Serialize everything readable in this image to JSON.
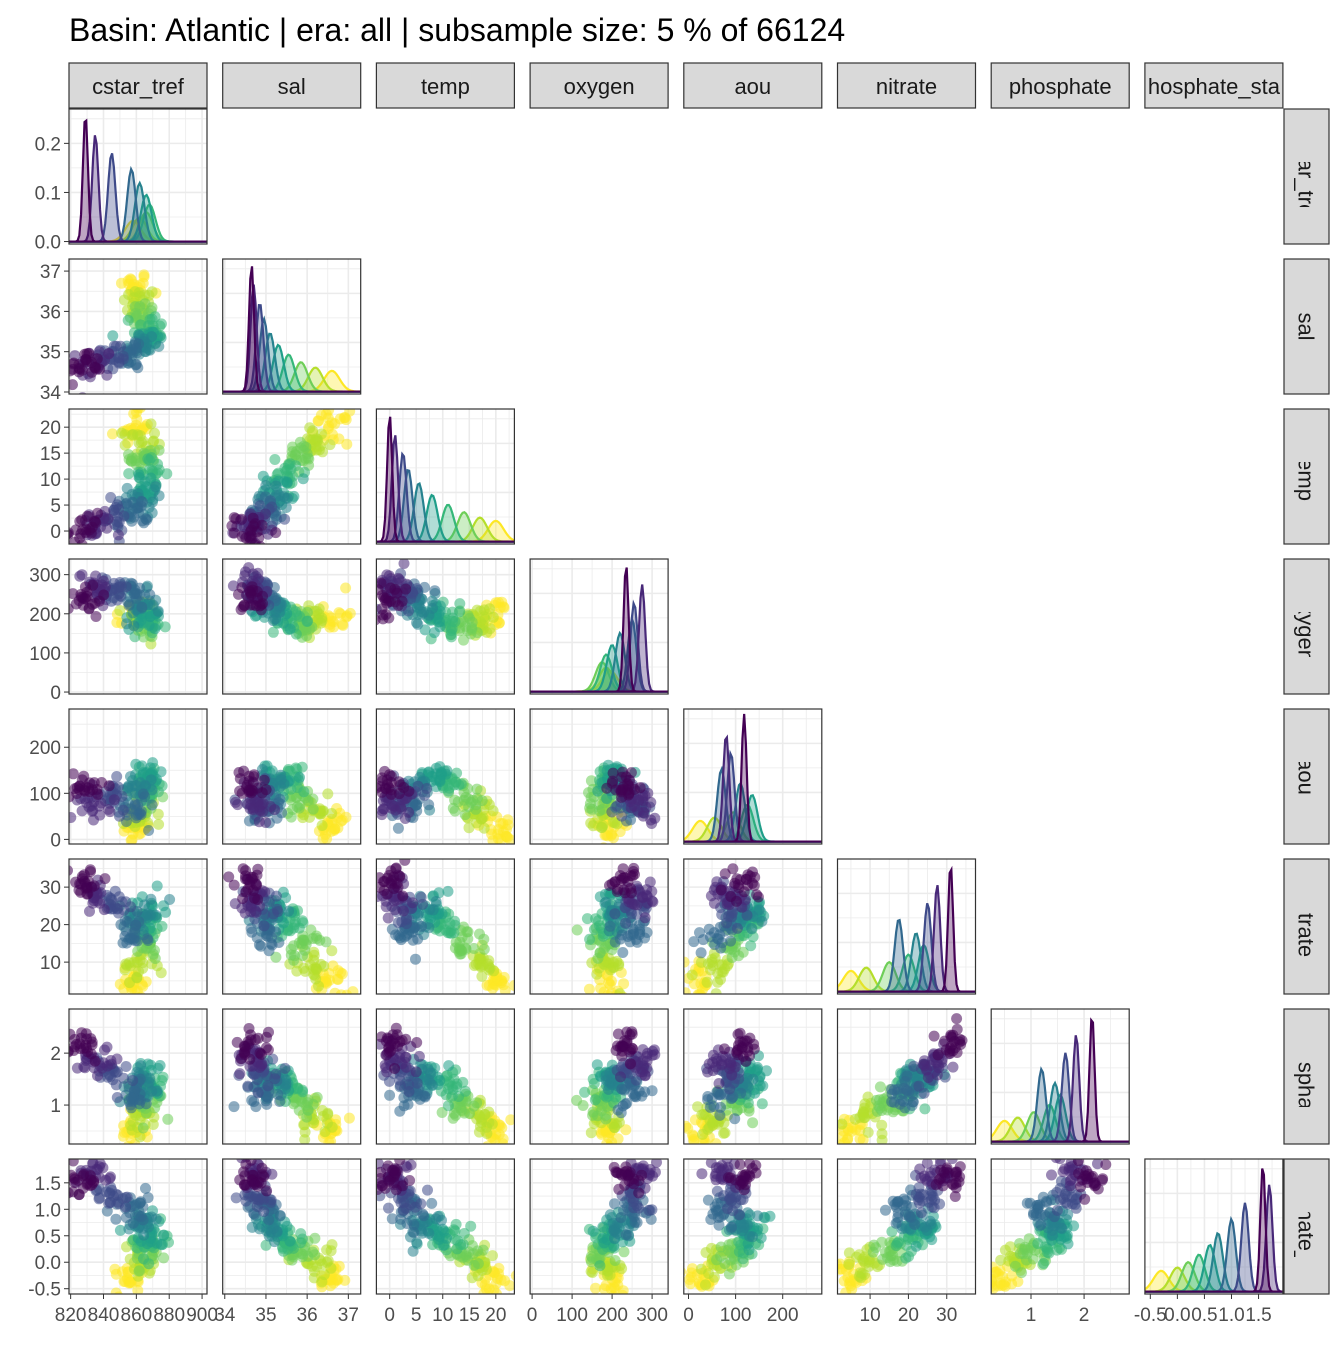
{
  "title": "Basin: Atlantic | era: all | subsample size: 5 % of 66124",
  "variables": [
    "cstar_tref",
    "sal",
    "temp",
    "oxygen",
    "aou",
    "nitrate",
    "phosphate",
    "phosphate_star"
  ],
  "strip_labels": [
    "cstar_tref",
    "sal",
    "temp",
    "oxygen",
    "aou",
    "nitrate",
    "phosphate",
    "hosphate_sta"
  ],
  "axis_ticks": {
    "cstar_tref": {
      "labels": [
        "820",
        "840",
        "860",
        "880",
        "900"
      ],
      "values": [
        820,
        840,
        860,
        880,
        900
      ],
      "range": [
        819,
        903
      ]
    },
    "sal": {
      "labels": [
        "34",
        "35",
        "36",
        "37"
      ],
      "values": [
        34,
        35,
        36,
        37
      ],
      "range": [
        33.95,
        37.3
      ]
    },
    "temp": {
      "labels": [
        "0",
        "5",
        "10",
        "15",
        "20"
      ],
      "values": [
        0,
        5,
        10,
        15,
        20
      ],
      "range": [
        -2.5,
        23.5
      ]
    },
    "oxygen": {
      "labels": [
        "0",
        "100",
        "200",
        "300"
      ],
      "values": [
        0,
        100,
        200,
        300
      ],
      "range": [
        -5,
        340
      ]
    },
    "aou": {
      "labels": [
        "0",
        "100",
        "200"
      ],
      "values": [
        0,
        100,
        200
      ],
      "range": [
        -10,
        283
      ]
    },
    "nitrate": {
      "labels": [
        "10",
        "20",
        "30"
      ],
      "values": [
        10,
        20,
        30
      ],
      "range": [
        1.5,
        37.5
      ]
    },
    "phosphate": {
      "labels": [
        "1",
        "2"
      ],
      "values": [
        1,
        2
      ],
      "range": [
        0.25,
        2.85
      ]
    },
    "phosphate_star": {
      "labels": [
        "-0.5",
        "0.0",
        "0.5",
        "1.0",
        "1.5"
      ],
      "values": [
        -0.5,
        0.0,
        0.5,
        1.0,
        1.5
      ],
      "range": [
        -0.6,
        1.95
      ]
    }
  },
  "density_ylim": [
    -0.005,
    0.27
  ],
  "density_ticks": {
    "labels": [
      "0.0",
      "0.1",
      "0.2"
    ],
    "values": [
      0.0,
      0.1,
      0.2
    ]
  },
  "palette": [
    "#440154",
    "#482878",
    "#3e4a89",
    "#31688e",
    "#26828e",
    "#1f9e89",
    "#35b779",
    "#6ece58",
    "#b5de2b",
    "#fde725"
  ],
  "colors": {
    "strip_fill": "#d9d9d9",
    "strip_border": "#333333",
    "panel_border": "#333333",
    "grid": "#ebebeb",
    "text": "#4d4d4d"
  },
  "chart_data": {
    "type": "scatter",
    "layout": "pairs-matrix (lower triangle scatter, diagonal density)",
    "color_groups": 10,
    "groups": [
      {
        "cstar_tref": 829,
        "sal": 34.65,
        "temp": 0.0,
        "oxygen": 235,
        "aou": 118,
        "nitrate": 31.0,
        "phosphate": 2.15,
        "phosphate_star": 1.58
      },
      {
        "cstar_tref": 835,
        "sal": 34.7,
        "temp": 1.0,
        "oxygen": 275,
        "aou": 80,
        "nitrate": 27.5,
        "phosphate": 1.85,
        "phosphate_star": 1.7
      },
      {
        "cstar_tref": 845,
        "sal": 34.85,
        "temp": 2.5,
        "oxygen": 255,
        "aou": 90,
        "nitrate": 25.0,
        "phosphate": 1.65,
        "phosphate_star": 1.25
      },
      {
        "cstar_tref": 857,
        "sal": 34.95,
        "temp": 3.5,
        "oxygen": 250,
        "aou": 70,
        "nitrate": 17.5,
        "phosphate": 1.2,
        "phosphate_star": 1.0
      },
      {
        "cstar_tref": 862,
        "sal": 35.1,
        "temp": 5.5,
        "oxygen": 220,
        "aou": 110,
        "nitrate": 22.0,
        "phosphate": 1.45,
        "phosphate_star": 0.75
      },
      {
        "cstar_tref": 866,
        "sal": 35.3,
        "temp": 8.0,
        "oxygen": 200,
        "aou": 135,
        "nitrate": 24.0,
        "phosphate": 1.55,
        "phosphate_star": 0.6
      },
      {
        "cstar_tref": 868,
        "sal": 35.55,
        "temp": 11.0,
        "oxygen": 185,
        "aou": 125,
        "nitrate": 20.0,
        "phosphate": 1.35,
        "phosphate_star": 0.4
      },
      {
        "cstar_tref": 866,
        "sal": 35.85,
        "temp": 14.0,
        "oxygen": 175,
        "aou": 95,
        "nitrate": 15.0,
        "phosphate": 1.05,
        "phosphate_star": 0.2
      },
      {
        "cstar_tref": 862,
        "sal": 36.2,
        "temp": 17.0,
        "oxygen": 185,
        "aou": 55,
        "nitrate": 9.0,
        "phosphate": 0.75,
        "phosphate_star": 0.0
      },
      {
        "cstar_tref": 858,
        "sal": 36.6,
        "temp": 20.0,
        "oxygen": 195,
        "aou": 25,
        "nitrate": 5.0,
        "phosphate": 0.5,
        "phosphate_star": -0.3
      }
    ]
  }
}
